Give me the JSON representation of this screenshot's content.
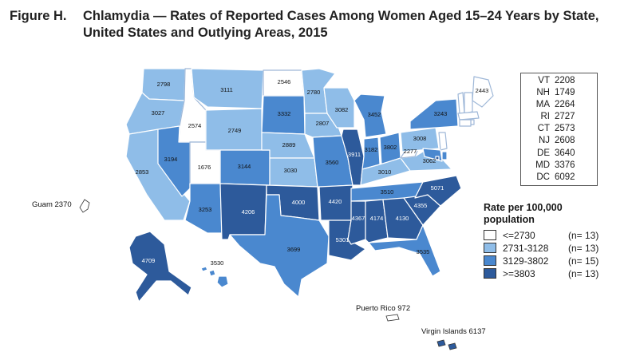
{
  "title": {
    "figure": "Figure H.",
    "line1": "Chlamydia — Rates of Reported Cases Among Women Aged 15–24 Years by State,",
    "line2": "United States and Outlying Areas, 2015"
  },
  "colors": {
    "cat1": "#ffffff",
    "cat2": "#8fbde8",
    "cat3": "#4a88cf",
    "cat4": "#2d5a9b",
    "border": "#ffffff"
  },
  "states": [
    {
      "abbr": "WA",
      "rate": "2798",
      "cat": 2
    },
    {
      "abbr": "OR",
      "rate": "3027",
      "cat": 2
    },
    {
      "abbr": "CA",
      "rate": "2853",
      "cat": 2
    },
    {
      "abbr": "ID",
      "rate": "2574",
      "cat": 1
    },
    {
      "abbr": "NV",
      "rate": "3194",
      "cat": 3
    },
    {
      "abbr": "UT",
      "rate": "1676",
      "cat": 1
    },
    {
      "abbr": "AZ",
      "rate": "3253",
      "cat": 3
    },
    {
      "abbr": "MT",
      "rate": "3111",
      "cat": 2
    },
    {
      "abbr": "WY",
      "rate": "2749",
      "cat": 2
    },
    {
      "abbr": "CO",
      "rate": "3144",
      "cat": 3
    },
    {
      "abbr": "NM",
      "rate": "4206",
      "cat": 4
    },
    {
      "abbr": "ND",
      "rate": "2546",
      "cat": 1
    },
    {
      "abbr": "SD",
      "rate": "3332",
      "cat": 3
    },
    {
      "abbr": "NE",
      "rate": "2889",
      "cat": 2
    },
    {
      "abbr": "KS",
      "rate": "3030",
      "cat": 2
    },
    {
      "abbr": "OK",
      "rate": "4000",
      "cat": 4
    },
    {
      "abbr": "TX",
      "rate": "3699",
      "cat": 3
    },
    {
      "abbr": "MN",
      "rate": "2780",
      "cat": 2
    },
    {
      "abbr": "IA",
      "rate": "2807",
      "cat": 2
    },
    {
      "abbr": "MO",
      "rate": "3560",
      "cat": 3
    },
    {
      "abbr": "AR",
      "rate": "4420",
      "cat": 4
    },
    {
      "abbr": "LA",
      "rate": "5301",
      "cat": 4
    },
    {
      "abbr": "WI",
      "rate": "3082",
      "cat": 2
    },
    {
      "abbr": "IL",
      "rate": "3911",
      "cat": 4
    },
    {
      "abbr": "MI",
      "rate": "3452",
      "cat": 3
    },
    {
      "abbr": "IN",
      "rate": "3182",
      "cat": 3
    },
    {
      "abbr": "OH",
      "rate": "3802",
      "cat": 3
    },
    {
      "abbr": "KY",
      "rate": "3010",
      "cat": 2
    },
    {
      "abbr": "TN",
      "rate": "3510",
      "cat": 3
    },
    {
      "abbr": "MS",
      "rate": "4367",
      "cat": 4
    },
    {
      "abbr": "AL",
      "rate": "4174",
      "cat": 4
    },
    {
      "abbr": "GA",
      "rate": "4130",
      "cat": 4
    },
    {
      "abbr": "FL",
      "rate": "3535",
      "cat": 3
    },
    {
      "abbr": "SC",
      "rate": "4355",
      "cat": 4
    },
    {
      "abbr": "NC",
      "rate": "5071",
      "cat": 4
    },
    {
      "abbr": "VA",
      "rate": "3062",
      "cat": 2
    },
    {
      "abbr": "WV",
      "rate": "2277",
      "cat": 1
    },
    {
      "abbr": "PA",
      "rate": "3008",
      "cat": 2
    },
    {
      "abbr": "NY",
      "rate": "3243",
      "cat": 3
    },
    {
      "abbr": "ME",
      "rate": "2443",
      "cat": 1
    },
    {
      "abbr": "AK",
      "rate": "4709",
      "cat": 4
    },
    {
      "abbr": "HI",
      "rate": "3530",
      "cat": 3
    },
    {
      "abbr": "VT",
      "rate": "2208",
      "cat": 1
    },
    {
      "abbr": "NH",
      "rate": "1749",
      "cat": 1
    },
    {
      "abbr": "MA",
      "rate": "2264",
      "cat": 1
    },
    {
      "abbr": "RI",
      "rate": "2727",
      "cat": 1
    },
    {
      "abbr": "CT",
      "rate": "2573",
      "cat": 1
    },
    {
      "abbr": "NJ",
      "rate": "2608",
      "cat": 1
    },
    {
      "abbr": "DE",
      "rate": "3640",
      "cat": 3
    },
    {
      "abbr": "MD",
      "rate": "3376",
      "cat": 3
    },
    {
      "abbr": "DC",
      "rate": "6092",
      "cat": 4
    }
  ],
  "territories": {
    "guam": "Guam 2370",
    "puerto_rico": "Puerto Rico 972",
    "virgin_islands": "Virgin Islands 6137"
  },
  "small_states_table": [
    {
      "abbr": "VT",
      "value": "2208"
    },
    {
      "abbr": "NH",
      "value": "1749"
    },
    {
      "abbr": "MA",
      "value": "2264"
    },
    {
      "abbr": "RI",
      "value": "2727"
    },
    {
      "abbr": "CT",
      "value": "2573"
    },
    {
      "abbr": "NJ",
      "value": "2608"
    },
    {
      "abbr": "DE",
      "value": "3640"
    },
    {
      "abbr": "MD",
      "value": "3376"
    },
    {
      "abbr": "DC",
      "value": "6092"
    }
  ],
  "legend": {
    "title_line1": "Rate per 100,000",
    "title_line2": "population",
    "items": [
      {
        "label": "<=2730",
        "count": "(n= 13)",
        "color": "#ffffff"
      },
      {
        "label": "2731-3128",
        "count": "(n= 13)",
        "color": "#8fbde8"
      },
      {
        "label": "3129-3802",
        "count": "(n= 15)",
        "color": "#4a88cf"
      },
      {
        "label": ">=3803",
        "count": "(n= 13)",
        "color": "#2d5a9b"
      }
    ]
  }
}
